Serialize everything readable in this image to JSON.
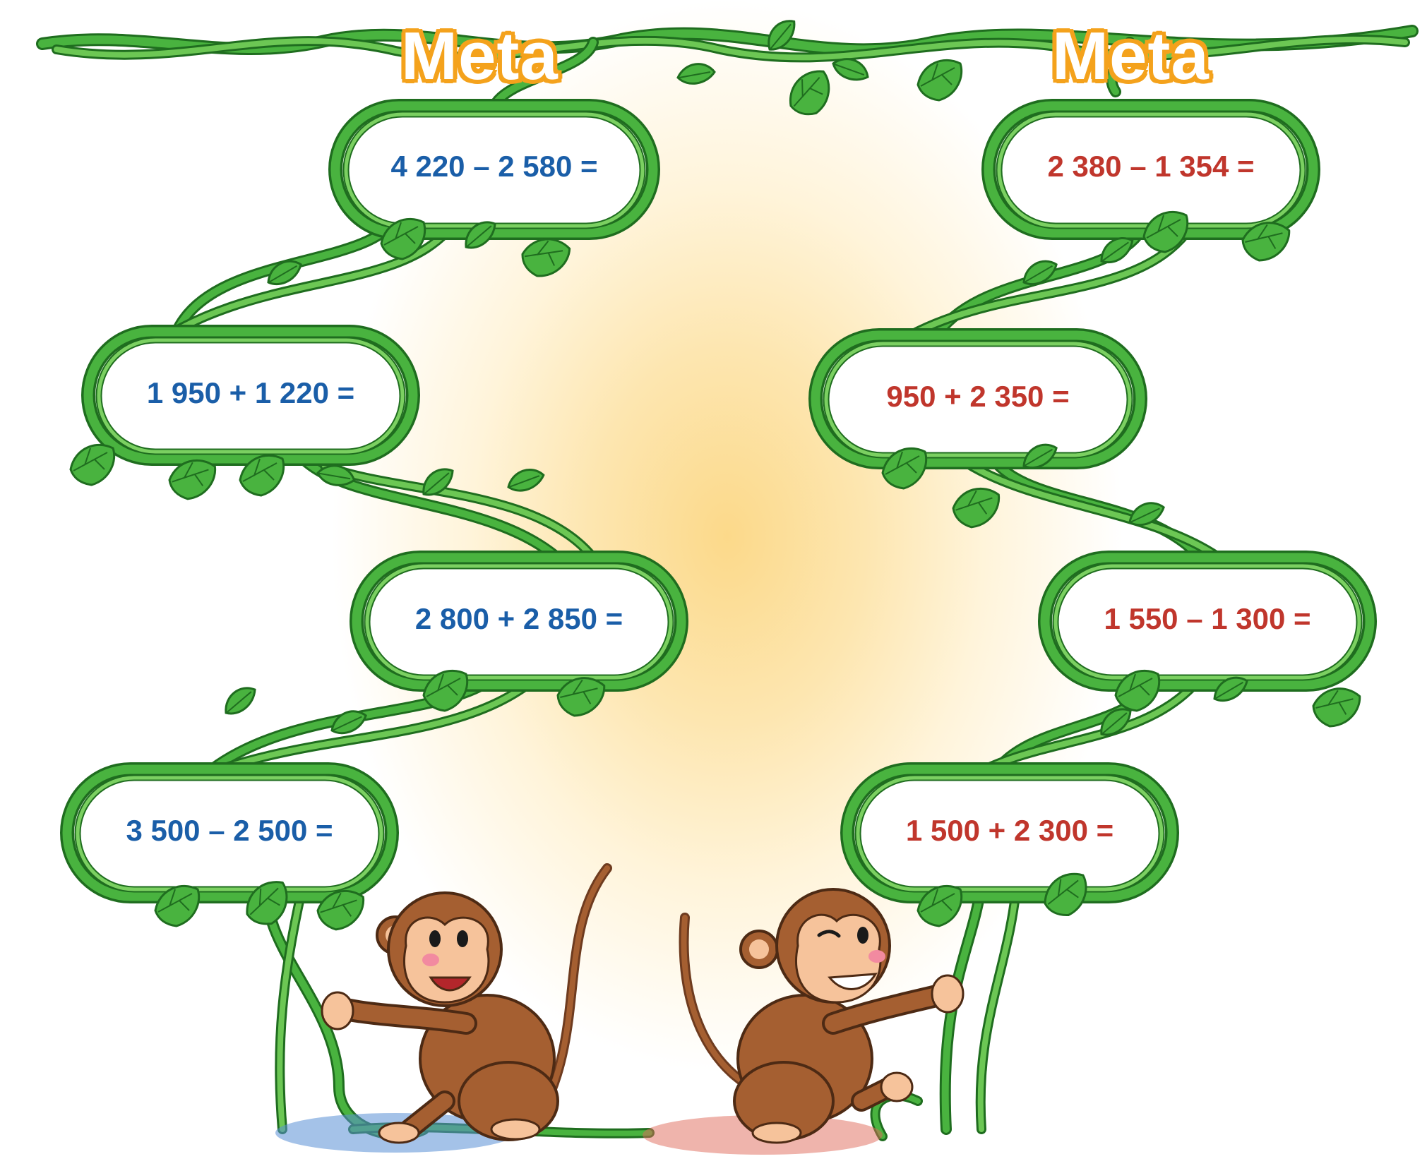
{
  "headings": {
    "left": "Meta",
    "right": "Meta"
  },
  "colors": {
    "vine": "#3a9b35",
    "vine_light": "#7bd061",
    "left_text": "#1a5ea8",
    "right_text": "#c0362c",
    "heading_fill": "#ffffff",
    "heading_outline": "#f4a21c"
  },
  "left_path": [
    {
      "expression": "4 220 – 2 580 ="
    },
    {
      "expression": "1 950 + 1 220 ="
    },
    {
      "expression": "2 800 + 2 850 ="
    },
    {
      "expression": "3 500 – 2 500 ="
    }
  ],
  "right_path": [
    {
      "expression": "2 380 – 1 354 ="
    },
    {
      "expression": "950 + 2 350 ="
    },
    {
      "expression": "1 550 – 1 300 ="
    },
    {
      "expression": "1 500 + 2 300 ="
    }
  ],
  "characters": {
    "left": "monkey-icon",
    "right": "monkey-icon"
  }
}
